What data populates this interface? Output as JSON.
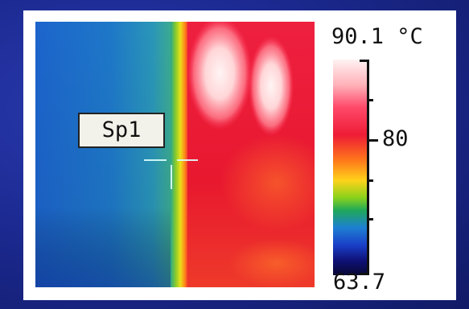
{
  "thermal_image": {
    "spot_label": "Sp1",
    "colors": {
      "cold_blue": "#1a6ad0",
      "cyan_band": "#2aa0a0",
      "edge_yellow": "#d6e21a",
      "hot_red": "#e51a3a",
      "hot_spot": "#fff0f0"
    }
  },
  "temperature_scale": {
    "max_label": "90.1 °C",
    "mid_label": "80",
    "min_label": "63.7",
    "max": 90.1,
    "mid": 80,
    "min": 63.7,
    "unit": "°C"
  }
}
